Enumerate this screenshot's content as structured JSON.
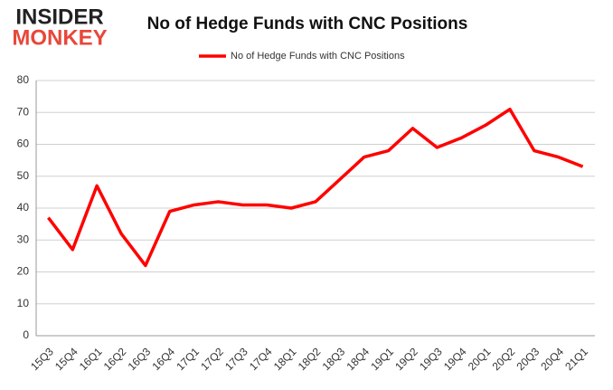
{
  "logo": {
    "top": "INSIDER",
    "bottom": "MONKEY"
  },
  "chart_data": {
    "type": "line",
    "title": "No of Hedge Funds with CNC Positions",
    "categories": [
      "15Q3",
      "15Q4",
      "16Q1",
      "16Q2",
      "16Q3",
      "16Q4",
      "17Q1",
      "17Q2",
      "17Q3",
      "17Q4",
      "18Q1",
      "18Q2",
      "18Q3",
      "18Q4",
      "19Q1",
      "19Q2",
      "19Q3",
      "19Q4",
      "20Q1",
      "20Q2",
      "20Q3",
      "20Q4",
      "21Q1"
    ],
    "series": [
      {
        "name": "No of Hedge Funds with CNC Positions",
        "color": "#ff0000",
        "values": [
          37,
          27,
          47,
          32,
          22,
          39,
          41,
          42,
          41,
          41,
          40,
          42,
          49,
          56,
          58,
          65,
          59,
          62,
          66,
          71,
          58,
          56,
          53
        ]
      }
    ],
    "ylim": [
      0,
      80
    ],
    "yticks": [
      0,
      10,
      20,
      30,
      40,
      50,
      60,
      70,
      80
    ],
    "grid": true,
    "legend": "top"
  }
}
